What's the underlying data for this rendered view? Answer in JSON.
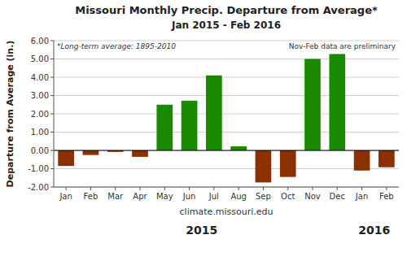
{
  "chart_data": {
    "type": "bar",
    "title": "Missouri Monthly Precip. Departure from Average*",
    "subtitle": "Jan 2015 - Feb 2016",
    "xlabel": "climate.missouri.edu",
    "ylabel": "Departure from Average (in.)",
    "categories": [
      "Jan",
      "Feb",
      "Mar",
      "Apr",
      "May",
      "Jun",
      "Jul",
      "Aug",
      "Sep",
      "Oct",
      "Nov",
      "Dec",
      "Jan",
      "Feb"
    ],
    "groups": [
      {
        "label": "2015",
        "count": 12
      },
      {
        "label": "2016",
        "count": 2
      }
    ],
    "values": [
      -0.85,
      -0.25,
      -0.08,
      -0.35,
      2.5,
      2.72,
      4.1,
      0.22,
      -1.75,
      -1.45,
      5.0,
      5.27,
      -1.1,
      -0.92
    ],
    "colors": [
      "#8b3000",
      "#8b3000",
      "#8b3000",
      "#8b3000",
      "#1a8a00",
      "#1a8a00",
      "#1a8a00",
      "#1a8a00",
      "#8b3000",
      "#8b3000",
      "#1a8a00",
      "#1a8a00",
      "#8b3000",
      "#8b3000"
    ],
    "ylim": [
      -2.0,
      6.0
    ],
    "yticks": [
      {
        "value": -2,
        "label": "-2.00"
      },
      {
        "value": -1,
        "label": "-1.00"
      },
      {
        "value": 0,
        "label": "0.00"
      },
      {
        "value": 1,
        "label": "1.00"
      },
      {
        "value": 2,
        "label": "2.00"
      },
      {
        "value": 3,
        "label": "3.00"
      },
      {
        "value": 4,
        "label": "4.00"
      },
      {
        "value": 5,
        "label": "5.00"
      },
      {
        "value": 6,
        "label": "6.00"
      }
    ],
    "grid": true,
    "annotations": [
      "*Long-term average: 1895-2010",
      "Nov-Feb data are preliminary"
    ]
  }
}
